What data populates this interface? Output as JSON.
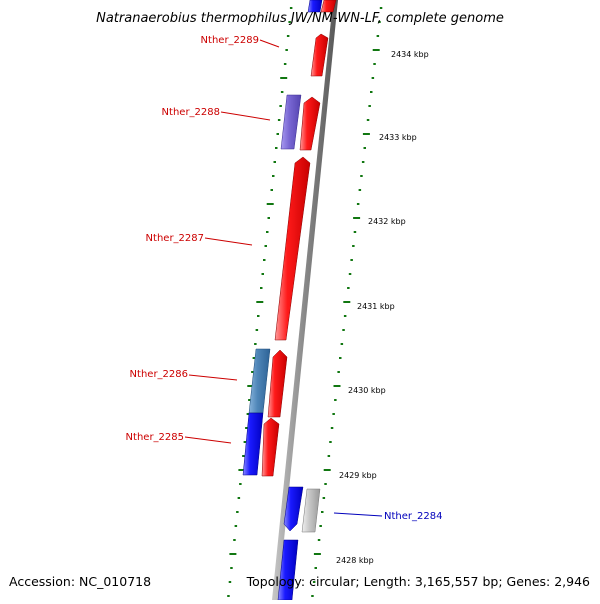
{
  "title": "Natranaerobius thermophilus JW/NM-WN-LF, complete genome",
  "footer": {
    "accession": "Accession: NC_010718",
    "topology": "Topology: circular; Length: 3,165,557 bp; Genes: 2,946"
  },
  "kbp_labels": [
    "2434 kbp",
    "2433 kbp",
    "2432 kbp",
    "2431 kbp",
    "2430 kbp",
    "2429 kbp",
    "2428 kbp"
  ],
  "genes": [
    {
      "label": "Nther_2289",
      "color": "#cc0000"
    },
    {
      "label": "Nther_2288",
      "color": "#cc0000"
    },
    {
      "label": "Nther_2287",
      "color": "#cc0000"
    },
    {
      "label": "Nther_2286",
      "color": "#cc0000"
    },
    {
      "label": "Nther_2285",
      "color": "#cc0000"
    },
    {
      "label": "Nther_2284",
      "color": "#0000bb"
    }
  ],
  "colors": {
    "forward_strand": "#ff0000",
    "reverse_strand": "#0000ff",
    "backbone": "#777777",
    "gc_ticks": "#117711",
    "purple_feature": "#7a68d4",
    "steel_feature": "#4f86b8",
    "grey_feature": "#bbbbbb"
  }
}
